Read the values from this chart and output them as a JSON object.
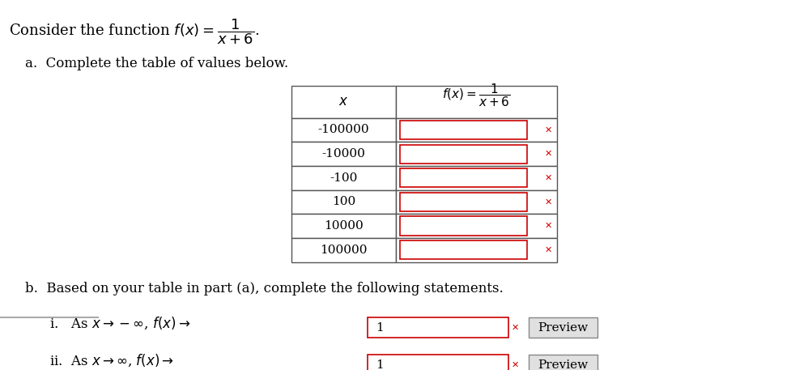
{
  "bg_color": "#ffffff",
  "title_text": "Consider the function $f(x) = \\dfrac{1}{x+6}$.",
  "part_a_text": "a.  Complete the table of values below.",
  "part_b_text": "b.  Based on your table in part (a), complete the following statements.",
  "statement_i": "i.   As $x \\rightarrow -\\infty$, $f(x) \\rightarrow$",
  "statement_ii": "ii.  As $x \\rightarrow \\infty$, $f(x) \\rightarrow$",
  "col1_header": "$x$",
  "x_values": [
    "-100000",
    "-10000",
    "-100",
    "100",
    "10000",
    "100000"
  ],
  "input_border_color": "#cc0000",
  "table_border_color": "#555555",
  "x_mark_color": "#cc0000",
  "answer_text": "1",
  "preview_btn_text": "Preview",
  "bottom_line_color": "#aaaaaa"
}
